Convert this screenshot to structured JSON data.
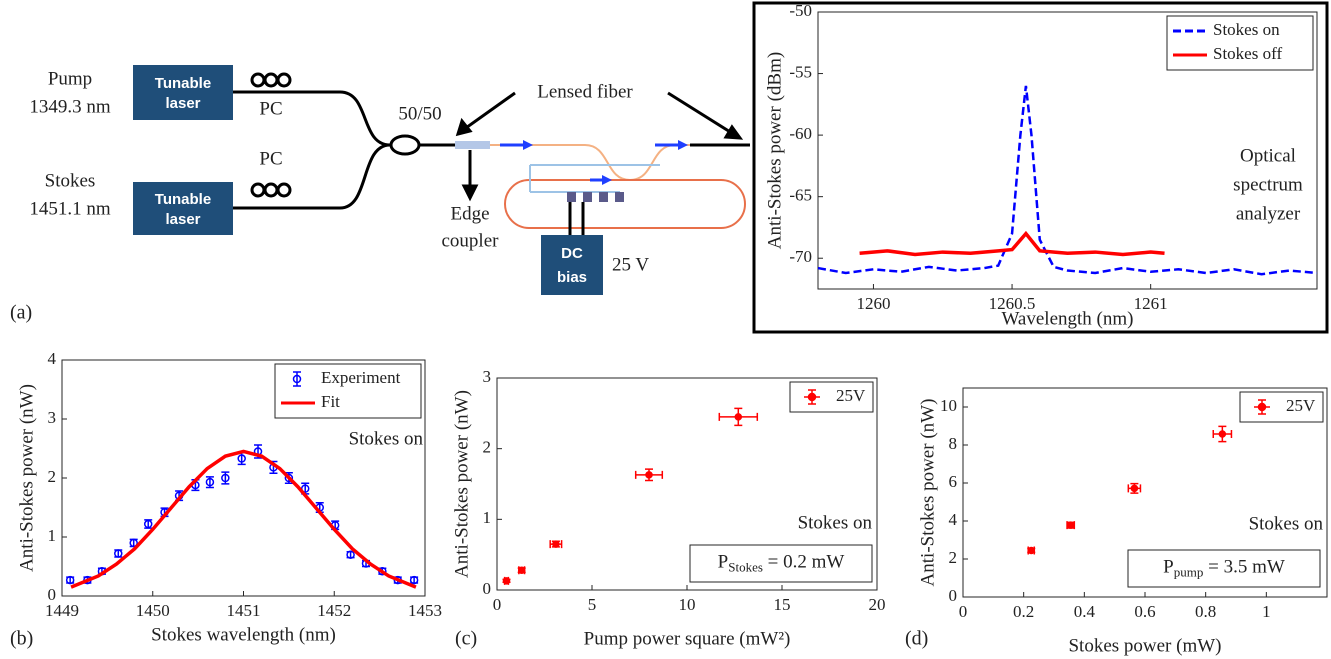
{
  "diagram": {
    "pump": [
      "Pump",
      "1349.3 nm"
    ],
    "stokes": [
      "Stokes",
      "1451.1 nm"
    ],
    "lasers": [
      [
        "Tunable",
        "laser"
      ],
      [
        "Tunable",
        "laser"
      ]
    ],
    "pc": [
      "PC",
      "PC"
    ],
    "splitter": "50/50",
    "lensed_fiber": "Lensed fiber",
    "edge_coupler": [
      "Edge",
      "coupler"
    ],
    "dc_bias": [
      "DC",
      "bias"
    ],
    "voltage": "25 V",
    "osa": [
      "Optical",
      "spectrum",
      "analyzer"
    ],
    "panel_labels": [
      "(a)",
      "(b)",
      "(c)",
      "(d)"
    ]
  },
  "chart_data": [
    {
      "type": "line",
      "xlabel": "Wavelength (nm)",
      "ylabel": "Anti-Stokes power (dBm)",
      "xlim": [
        1259.8,
        1261.6
      ],
      "ylim": [
        -72.5,
        -50
      ],
      "xticks": [
        1260,
        1260.5,
        1261
      ],
      "yticks": [
        -70,
        -65,
        -60,
        -55,
        -50
      ],
      "legend": "upper right",
      "series": [
        {
          "name": "Stokes on",
          "color": "#0000ff",
          "style": "dashed",
          "x": [
            1259.8,
            1259.9,
            1260,
            1260.1,
            1260.2,
            1260.3,
            1260.4,
            1260.45,
            1260.5,
            1260.53,
            1260.55,
            1260.57,
            1260.6,
            1260.65,
            1260.7,
            1260.8,
            1260.9,
            1261,
            1261.1,
            1261.2,
            1261.3,
            1261.4,
            1261.5,
            1261.6
          ],
          "values": [
            -70.8,
            -71.2,
            -70.9,
            -71.1,
            -70.7,
            -71,
            -70.8,
            -70.6,
            -68,
            -60,
            -56,
            -60,
            -68.5,
            -70.7,
            -71,
            -71.2,
            -70.8,
            -71.1,
            -70.9,
            -71.2,
            -70.9,
            -71.3,
            -71,
            -71.2
          ]
        },
        {
          "name": "Stokes off",
          "color": "#ff0000",
          "style": "solid",
          "x": [
            1259.95,
            1260.05,
            1260.15,
            1260.25,
            1260.35,
            1260.45,
            1260.5,
            1260.55,
            1260.6,
            1260.7,
            1260.8,
            1260.9,
            1261,
            1261.05
          ],
          "values": [
            -69.6,
            -69.4,
            -69.7,
            -69.5,
            -69.6,
            -69.4,
            -69.3,
            -68,
            -69.4,
            -69.6,
            -69.5,
            -69.7,
            -69.5,
            -69.6
          ]
        }
      ]
    },
    {
      "type": "scatter",
      "xlabel": "Stokes wavelength (nm)",
      "ylabel": "Anti-Stokes power (nW)",
      "xlim": [
        1449,
        1453
      ],
      "ylim": [
        0,
        4
      ],
      "xticks": [
        1449,
        1450,
        1451,
        1452,
        1453
      ],
      "yticks": [
        0,
        1,
        2,
        3,
        4
      ],
      "legend": "upper right",
      "annotation": "Stokes on",
      "series": [
        {
          "name": "Experiment",
          "color": "#0000ff",
          "style": "open-marker",
          "x": [
            1449.09,
            1449.28,
            1449.44,
            1449.62,
            1449.79,
            1449.95,
            1450.13,
            1450.29,
            1450.47,
            1450.63,
            1450.8,
            1450.98,
            1451.16,
            1451.33,
            1451.5,
            1451.68,
            1451.84,
            1452.01,
            1452.18,
            1452.35,
            1452.53,
            1452.7,
            1452.88
          ],
          "values": [
            0.27,
            0.27,
            0.42,
            0.72,
            0.9,
            1.22,
            1.42,
            1.7,
            1.88,
            1.93,
            2.0,
            2.33,
            2.45,
            2.18,
            2.0,
            1.82,
            1.5,
            1.2,
            0.7,
            0.55,
            0.42,
            0.27,
            0.27
          ],
          "yerr": [
            0.05,
            0.05,
            0.05,
            0.06,
            0.06,
            0.07,
            0.07,
            0.08,
            0.09,
            0.09,
            0.1,
            0.1,
            0.11,
            0.1,
            0.09,
            0.09,
            0.08,
            0.07,
            0.05,
            0.05,
            0.05,
            0.05,
            0.05
          ]
        },
        {
          "name": "Fit",
          "color": "#ff0000",
          "style": "solid",
          "x": [
            1449.1,
            1449.4,
            1449.6,
            1449.8,
            1450,
            1450.2,
            1450.4,
            1450.6,
            1450.8,
            1451,
            1451.2,
            1451.4,
            1451.6,
            1451.8,
            1452,
            1452.2,
            1452.4,
            1452.6,
            1452.9
          ],
          "values": [
            0.15,
            0.34,
            0.54,
            0.8,
            1.13,
            1.49,
            1.85,
            2.16,
            2.37,
            2.45,
            2.37,
            2.16,
            1.85,
            1.49,
            1.13,
            0.8,
            0.54,
            0.34,
            0.15
          ]
        }
      ]
    },
    {
      "type": "scatter",
      "xlabel": "Pump power square (mW²)",
      "ylabel": "Anti-Stokes power (nW)",
      "xlim": [
        0,
        20
      ],
      "ylim": [
        0,
        3
      ],
      "xticks": [
        0,
        5,
        10,
        15,
        20
      ],
      "yticks": [
        0,
        1,
        2,
        3
      ],
      "legend": "upper right",
      "annotation": "Stokes on",
      "box_label": {
        "symbol": "P",
        "subscript": "Stokes",
        "text": " = 0.2 mW"
      },
      "series": [
        {
          "name": "25V",
          "color": "#ff0000",
          "style": "filled-marker",
          "x": [
            0.5,
            1.3,
            3.1,
            8,
            12.7
          ],
          "values": [
            0.13,
            0.28,
            0.65,
            1.63,
            2.45
          ],
          "xerr": [
            0.1,
            0.15,
            0.3,
            0.7,
            1.0
          ],
          "yerr": [
            0.02,
            0.03,
            0.04,
            0.08,
            0.12
          ]
        }
      ]
    },
    {
      "type": "scatter",
      "xlabel": "Stokes power (mW)",
      "ylabel": "Anti-Stokes power (nW)",
      "xlim": [
        0,
        1.2
      ],
      "ylim": [
        0,
        11
      ],
      "xticks": [
        0,
        0.2,
        0.4,
        0.6,
        0.8,
        1
      ],
      "yticks": [
        0,
        2,
        4,
        6,
        8,
        10
      ],
      "legend": "upper right",
      "annotation": "Stokes on",
      "box_label": {
        "symbol": "P",
        "subscript": "pump",
        "text": " = 3.5 mW"
      },
      "series": [
        {
          "name": "25V",
          "color": "#ff0000",
          "style": "filled-marker",
          "x": [
            0.225,
            0.355,
            0.565,
            0.855
          ],
          "values": [
            2.45,
            3.78,
            5.72,
            8.58
          ],
          "xerr": [
            0.01,
            0.012,
            0.02,
            0.03
          ],
          "yerr": [
            0.1,
            0.15,
            0.25,
            0.4
          ]
        }
      ]
    }
  ]
}
